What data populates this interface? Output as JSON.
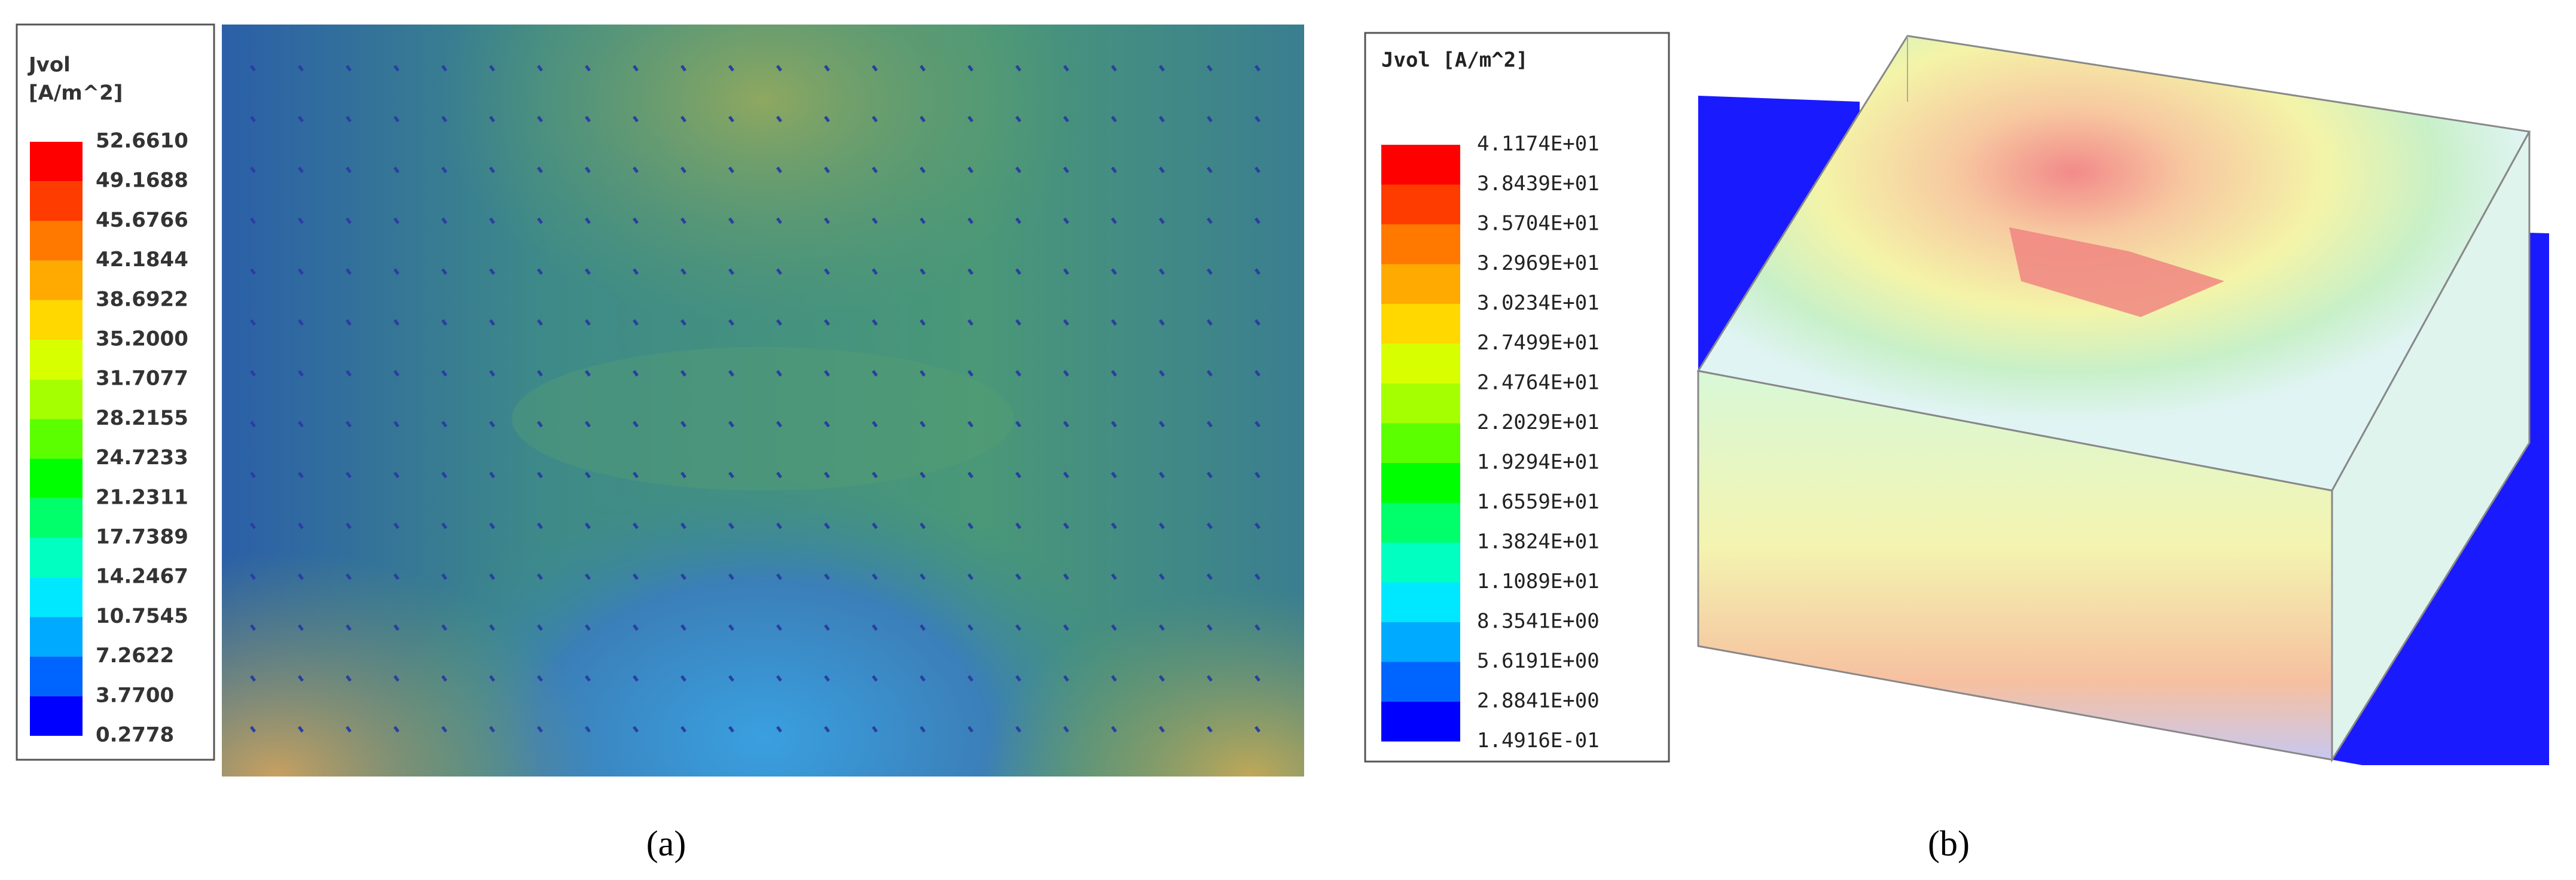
{
  "panel_a": {
    "legend": {
      "title_lines": [
        "Jvol",
        "[A/m^2]"
      ],
      "labels": [
        "52.6610",
        "49.1688",
        "45.6766",
        "42.1844",
        "38.6922",
        "35.2000",
        "31.7077",
        "28.2155",
        "24.7233",
        "21.2311",
        "17.7389",
        "14.2467",
        "10.7545",
        "7.2622",
        "3.7700",
        "0.2778"
      ]
    },
    "caption": "(a)"
  },
  "panel_b": {
    "legend": {
      "title": "Jvol [A/m^2]",
      "labels": [
        "4.1174E+01",
        "3.8439E+01",
        "3.5704E+01",
        "3.2969E+01",
        "3.0234E+01",
        "2.7499E+01",
        "2.4764E+01",
        "2.2029E+01",
        "1.9294E+01",
        "1.6559E+01",
        "1.3824E+01",
        "1.1089E+01",
        "8.3541E+00",
        "5.6191E+00",
        "2.8841E+00",
        "1.4916E-01"
      ]
    },
    "caption": "(b)"
  }
}
